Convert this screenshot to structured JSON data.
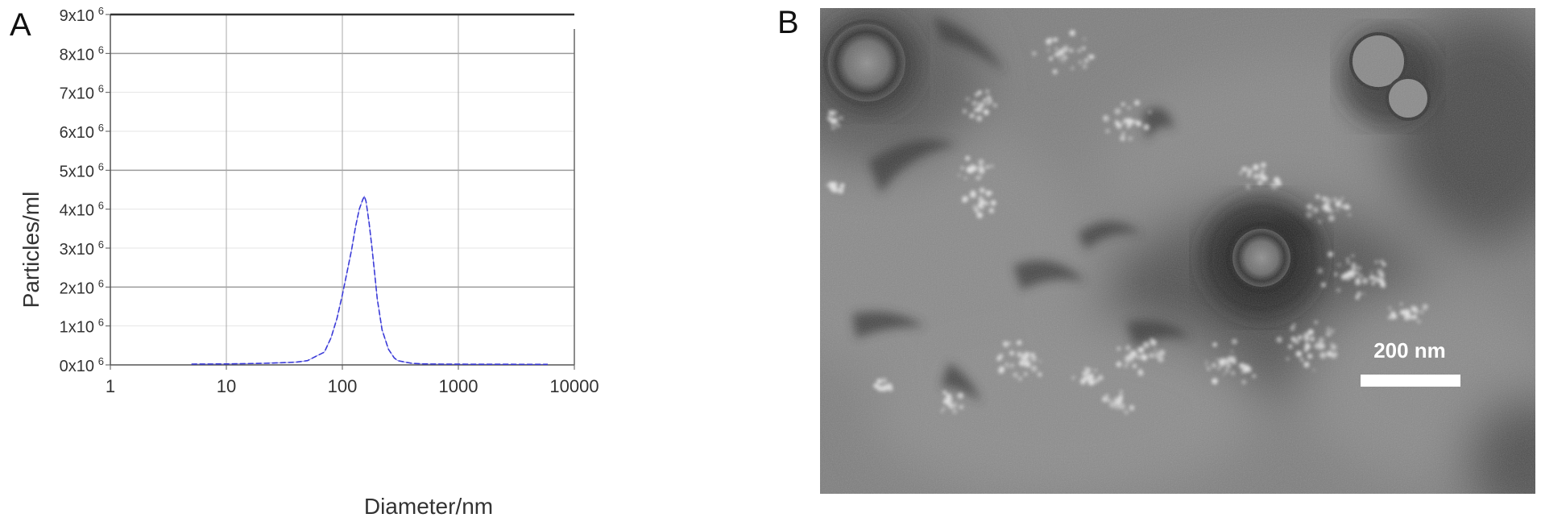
{
  "panels": {
    "a_label": "A",
    "b_label": "B"
  },
  "chart_data": {
    "type": "line",
    "xlabel": "Diameter/nm",
    "ylabel": "Particles/ml",
    "x_scale": "log",
    "xlim": [
      1,
      10000
    ],
    "ylim": [
      0,
      9000000
    ],
    "x_ticks": [
      "1",
      "10",
      "100",
      "1000",
      "10000"
    ],
    "x_tick_values": [
      1,
      10,
      100,
      1000,
      10000
    ],
    "y_ticks": [
      {
        "value": 0,
        "base": "0x10",
        "exp": "6"
      },
      {
        "value": 1000000,
        "base": "1x10",
        "exp": "6"
      },
      {
        "value": 2000000,
        "base": "2x10",
        "exp": "6"
      },
      {
        "value": 3000000,
        "base": "3x10",
        "exp": "6"
      },
      {
        "value": 4000000,
        "base": "4x10",
        "exp": "6"
      },
      {
        "value": 5000000,
        "base": "5x10",
        "exp": "6"
      },
      {
        "value": 6000000,
        "base": "6x10",
        "exp": "6"
      },
      {
        "value": 7000000,
        "base": "7x10",
        "exp": "6"
      },
      {
        "value": 8000000,
        "base": "8x10",
        "exp": "6"
      },
      {
        "value": 9000000,
        "base": "9x10",
        "exp": "6"
      }
    ],
    "grid": true,
    "series": [
      {
        "color": "#3a3ad8",
        "x": [
          5,
          10,
          20,
          30,
          40,
          50,
          60,
          70,
          80,
          90,
          100,
          110,
          120,
          130,
          140,
          150,
          155,
          160,
          170,
          180,
          190,
          200,
          220,
          250,
          280,
          300,
          350,
          400,
          500,
          700,
          1000,
          2000,
          5900
        ],
        "y": [
          20000,
          25000,
          40000,
          55000,
          70000,
          110000,
          230000,
          330000,
          700000,
          1200000,
          1800000,
          2400000,
          2950000,
          3550000,
          4000000,
          4250000,
          4330000,
          4200000,
          3650000,
          3000000,
          2350000,
          1700000,
          900000,
          400000,
          180000,
          110000,
          70000,
          40000,
          25000,
          20000,
          18000,
          16000,
          15000
        ]
      }
    ]
  },
  "tem": {
    "scale_label": "200 nm",
    "background_color": "#7c7c7c"
  }
}
